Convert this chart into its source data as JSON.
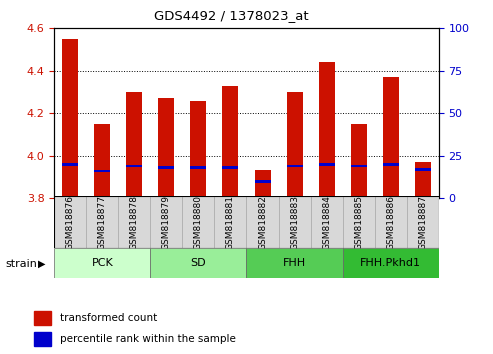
{
  "title": "GDS4492 / 1378023_at",
  "samples": [
    "GSM818876",
    "GSM818877",
    "GSM818878",
    "GSM818879",
    "GSM818880",
    "GSM818881",
    "GSM818882",
    "GSM818883",
    "GSM818884",
    "GSM818885",
    "GSM818886",
    "GSM818887"
  ],
  "transformed_count": [
    4.55,
    4.15,
    4.3,
    4.27,
    4.26,
    4.33,
    3.935,
    4.3,
    4.44,
    4.15,
    4.37,
    3.97
  ],
  "percentile_rank": [
    20,
    16,
    19,
    18,
    18,
    18,
    10,
    19,
    20,
    19,
    20,
    17
  ],
  "bar_bottom": 3.8,
  "ylim_left": [
    3.8,
    4.6
  ],
  "ylim_right": [
    0,
    100
  ],
  "yticks_left": [
    3.8,
    4.0,
    4.2,
    4.4,
    4.6
  ],
  "yticks_right": [
    0,
    25,
    50,
    75,
    100
  ],
  "groups": [
    {
      "label": "PCK",
      "indices": [
        0,
        1,
        2
      ],
      "color": "#ccffcc"
    },
    {
      "label": "SD",
      "indices": [
        3,
        4,
        5
      ],
      "color": "#99ee99"
    },
    {
      "label": "FHH",
      "indices": [
        6,
        7,
        8
      ],
      "color": "#55cc55"
    },
    {
      "label": "FHH.Pkhd1",
      "indices": [
        9,
        10,
        11
      ],
      "color": "#33bb33"
    }
  ],
  "bar_color_red": "#cc1100",
  "bar_color_blue": "#0000cc",
  "bar_width": 0.5,
  "tick_label_color_left": "#cc1100",
  "tick_label_color_right": "#0000cc",
  "grid_style": "dotted",
  "legend_red_label": "transformed count",
  "legend_blue_label": "percentile rank within the sample",
  "strain_label": "strain"
}
